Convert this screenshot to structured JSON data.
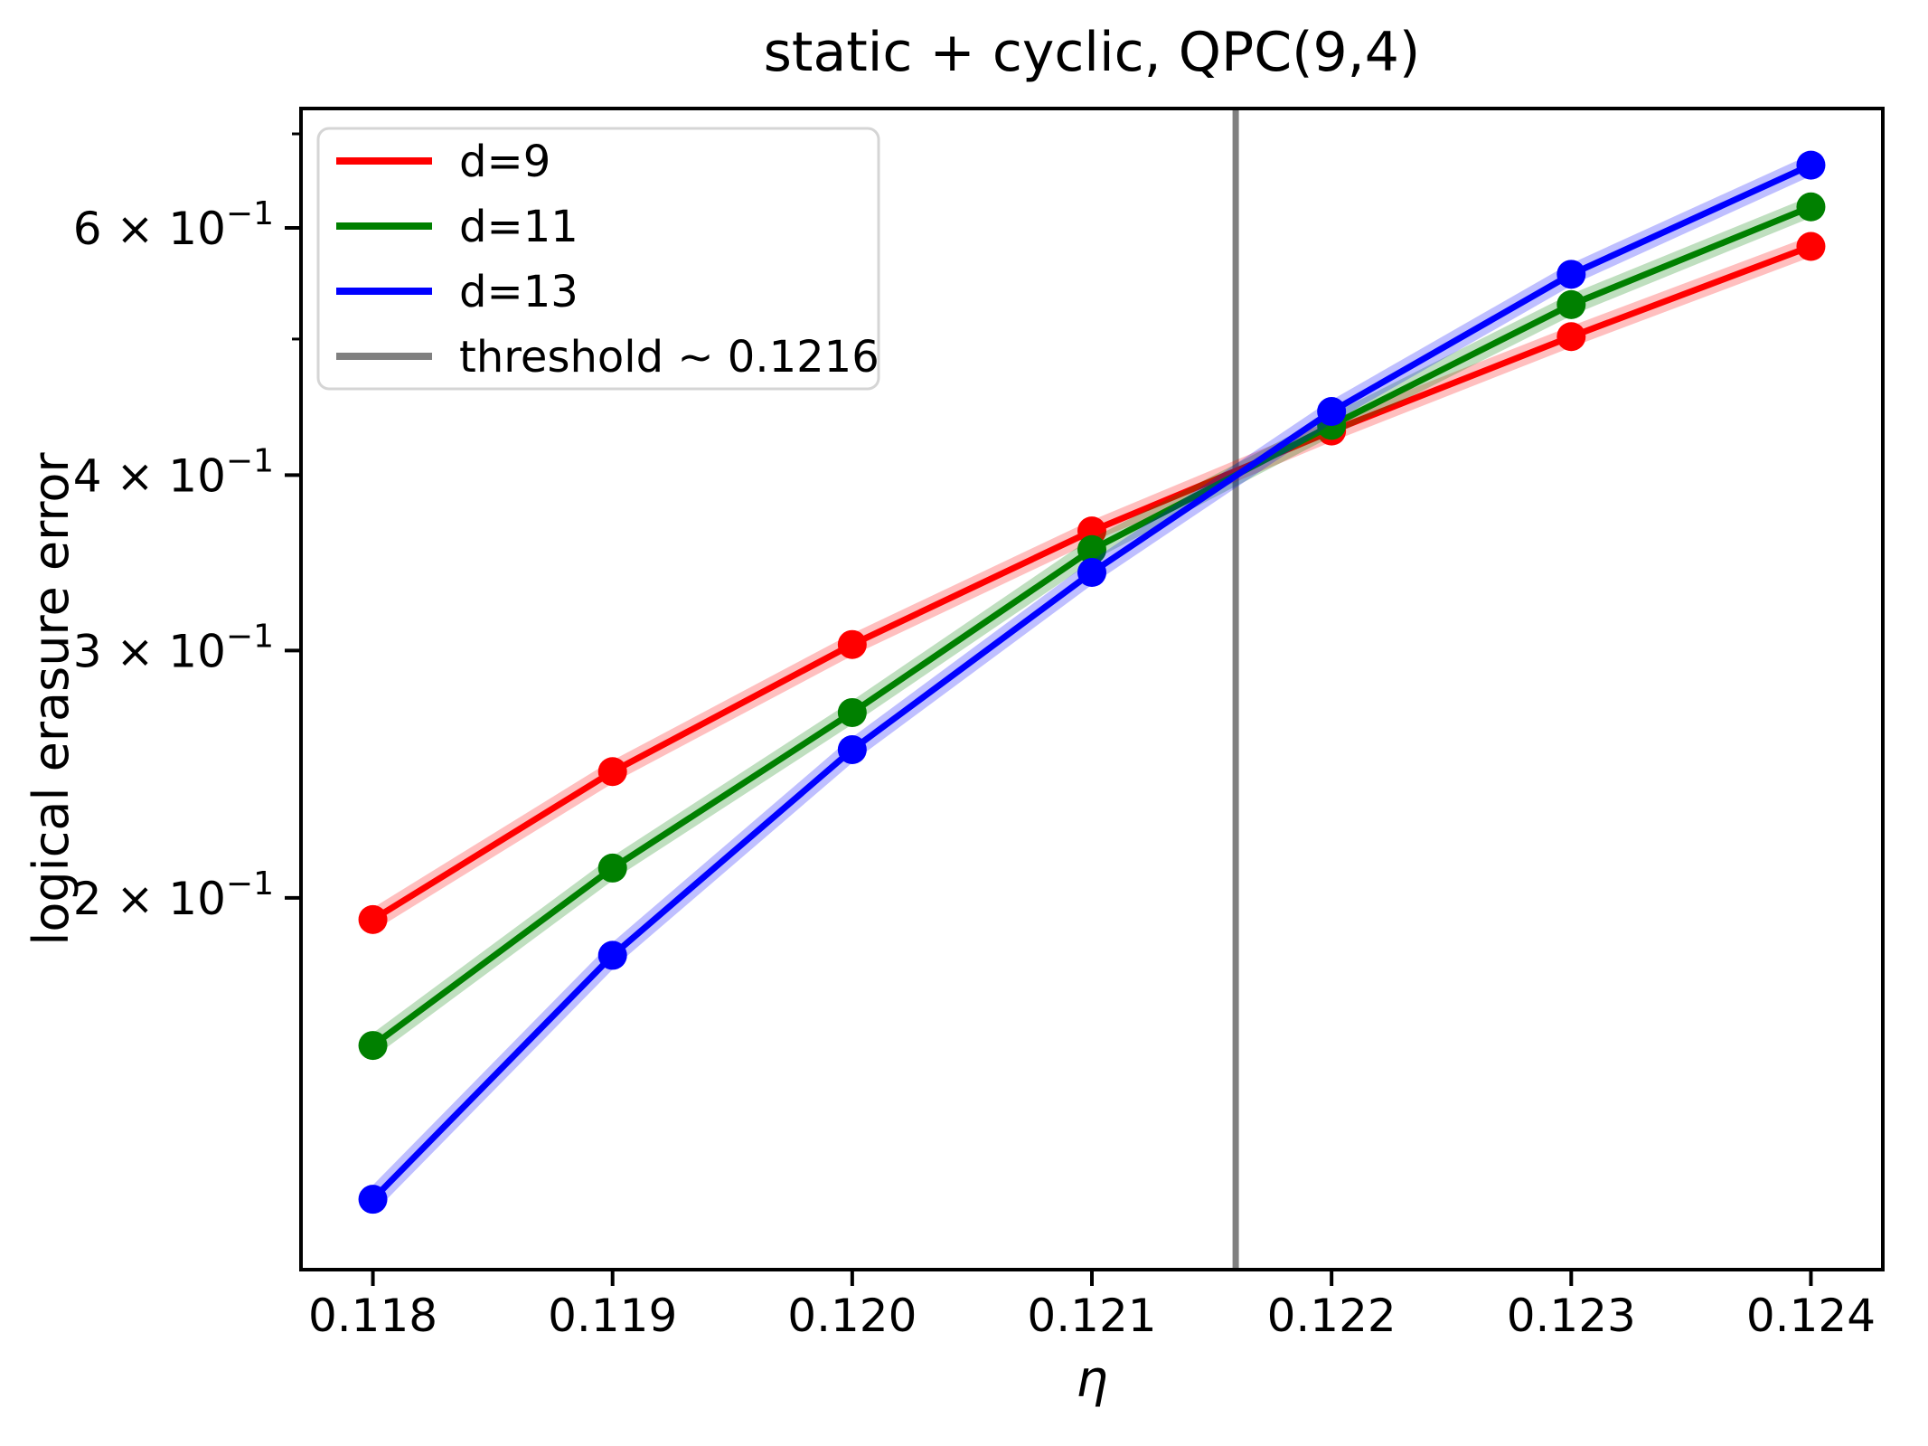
{
  "chart_data": {
    "type": "line",
    "title": "static + cyclic, QPC(9,4)",
    "xlabel": "η",
    "ylabel": "logical erasure error",
    "xscale": "linear",
    "yscale": "log",
    "xlim": [
      0.1177,
      0.1243
    ],
    "ylim": [
      0.1087,
      0.7297
    ],
    "grid": false,
    "legend_position": "upper left",
    "x": [
      0.118,
      0.119,
      0.12,
      0.121,
      0.122,
      0.123,
      0.124
    ],
    "series": [
      {
        "name": "d=9",
        "color": "#ff0000",
        "marker": "circle",
        "line_width": 7,
        "band_alpha": 0.25,
        "values": [
          0.193,
          0.246,
          0.303,
          0.365,
          0.43,
          0.502,
          0.582
        ]
      },
      {
        "name": "d=11",
        "color": "#008000",
        "marker": "circle",
        "line_width": 7,
        "band_alpha": 0.25,
        "values": [
          0.157,
          0.21,
          0.271,
          0.354,
          0.434,
          0.529,
          0.621
        ]
      },
      {
        "name": "d=13",
        "color": "#0000ff",
        "marker": "circle",
        "line_width": 7,
        "band_alpha": 0.25,
        "values": [
          0.122,
          0.182,
          0.255,
          0.341,
          0.444,
          0.556,
          0.665
        ]
      }
    ],
    "threshold": {
      "label": "threshold ~ 0.1216",
      "x": 0.1216,
      "color": "#808080"
    },
    "x_ticks": {
      "values": [
        0.118,
        0.119,
        0.12,
        0.121,
        0.122,
        0.123,
        0.124
      ],
      "labels": [
        "0.118",
        "0.119",
        "0.120",
        "0.121",
        "0.122",
        "0.123",
        "0.124"
      ]
    },
    "y_ticks_major": {
      "values": [
        0.6,
        0.4,
        0.3,
        0.2
      ],
      "labels_mantissa": [
        "6",
        "4",
        "3",
        "2"
      ],
      "times_sign": " × 10",
      "label_exponent": "−1"
    },
    "y_ticks_minor": [
      0.7,
      0.5
    ]
  },
  "colors": {
    "axes": "#000000",
    "background": "#ffffff",
    "legend_border": "#d5d5d5",
    "legend_fill": "#ffffff"
  }
}
